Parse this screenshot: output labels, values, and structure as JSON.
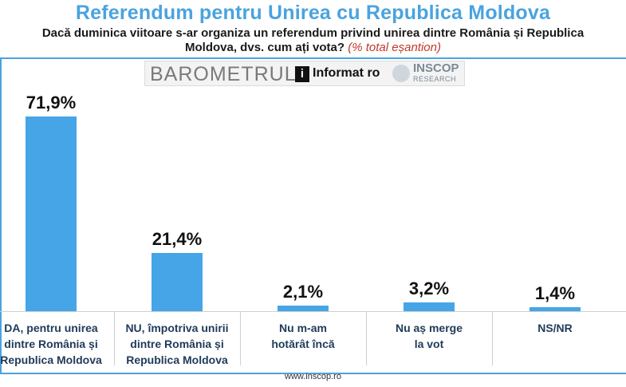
{
  "header": {
    "title": "Referendum pentru Unirea cu Republica Moldova",
    "question": "Dacă duminica viitoare s-ar organiza un referendum privind unirea dintre România și Republica Moldova, dvs. cum ați vota?",
    "note": "(% total eșantion)"
  },
  "banner": {
    "barometer_text": "BAROMETRUL",
    "informat_text": "Informat ro",
    "informat_icon": "info-i-icon",
    "inscop_text": "INSCOP",
    "inscop_sub": "RESEARCH"
  },
  "chart_data": {
    "type": "bar",
    "categories": [
      "DA, pentru unirea\ndintre România și\nRepublica Moldova",
      "NU, împotriva unirii\ndintre România și\nRepublica Moldova",
      "Nu m-am\nhotărât încă",
      "Nu aș merge\nla vot",
      "NS/NR"
    ],
    "values": [
      71.9,
      21.4,
      2.1,
      3.2,
      1.4
    ],
    "value_labels": [
      "71,9%",
      "21,4%",
      "2,1%",
      "3,2%",
      "1,4%"
    ],
    "ylim": [
      0,
      80
    ],
    "bar_color": "#45a5e6",
    "grid": false
  },
  "footer": {
    "url": "www.inscop.ro"
  },
  "colors": {
    "title": "#4aa3df",
    "note": "#c0392b",
    "bar": "#45a5e6"
  }
}
